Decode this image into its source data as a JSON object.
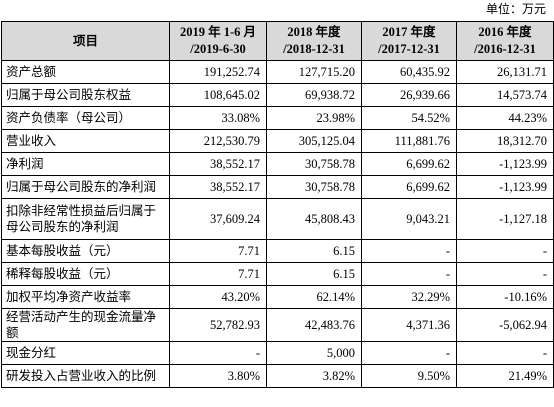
{
  "unit": "单位：万元",
  "table": {
    "header": [
      {
        "text": "项目"
      },
      {
        "line1": "2019 年 1-6 月",
        "line2": "/2019-6-30"
      },
      {
        "line1": "2018 年度",
        "line2": "/2018-12-31"
      },
      {
        "line1": "2017 年度",
        "line2": "/2017-12-31"
      },
      {
        "line1": "2016 年度",
        "line2": "/2016-12-31"
      }
    ],
    "rows": [
      [
        "资产总额",
        "191,252.74",
        "127,715.20",
        "60,435.92",
        "26,131.71"
      ],
      [
        "归属于母公司股东权益",
        "108,645.02",
        "69,938.72",
        "26,939.66",
        "14,573.74"
      ],
      [
        "资产负债率（母公司）",
        "33.08%",
        "23.98%",
        "54.52%",
        "44.23%"
      ],
      [
        "营业收入",
        "212,530.79",
        "305,125.04",
        "111,881.76",
        "18,312.70"
      ],
      [
        "净利润",
        "38,552.17",
        "30,758.78",
        "6,699.62",
        "-1,123.99"
      ],
      [
        "归属于母公司股东的净利润",
        "38,552.17",
        "30,758.78",
        "6,699.62",
        "-1,123.99"
      ],
      [
        "扣除非经常性损益后归属于母公司股东的净利润",
        "37,609.24",
        "45,808.43",
        "9,043.21",
        "-1,127.18"
      ],
      [
        "基本每股收益（元）",
        "7.71",
        "6.15",
        "-",
        "-"
      ],
      [
        "稀释每股收益（元）",
        "7.71",
        "6.15",
        "-",
        "-"
      ],
      [
        "加权平均净资产收益率",
        "43.20%",
        "62.14%",
        "32.29%",
        "-10.16%"
      ],
      [
        "经营活动产生的现金流量净额",
        "52,782.93",
        "42,483.76",
        "4,371.36",
        "-5,062.94"
      ],
      [
        "现金分红",
        "-",
        "5,000",
        "-",
        "-"
      ],
      [
        "研发投入占营业收入的比例",
        "3.80%",
        "3.82%",
        "9.50%",
        "21.49%"
      ]
    ]
  }
}
